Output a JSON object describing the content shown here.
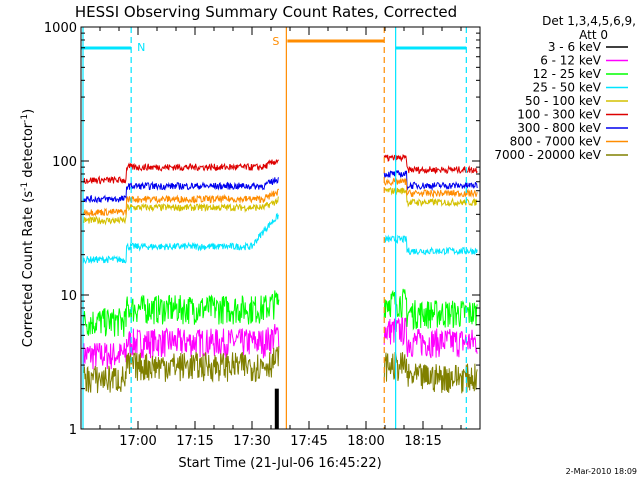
{
  "chart_data": {
    "type": "line",
    "title": "HESSI Observing Summary Count Rates, Corrected",
    "xlabel": "Start Time (21-Jul-06 16:45:22)",
    "ylabel_main": "Corrected Count Rate (s",
    "ylabel_sup1": "-1",
    "ylabel_mid": " detector",
    "ylabel_sup2": "-1",
    "ylabel_end": ")",
    "yscale": "log",
    "ylim": [
      1,
      1000
    ],
    "xlim_minutes": [
      16.75,
      18.5
    ],
    "x_tick_labels": [
      {
        "label": "17:00",
        "min": 17.0
      },
      {
        "label": "17:15",
        "min": 17.25
      },
      {
        "label": "17:30",
        "min": 17.5
      },
      {
        "label": "17:45",
        "min": 17.75
      },
      {
        "label": "18:00",
        "min": 18.0
      },
      {
        "label": "18:15",
        "min": 18.25
      }
    ],
    "y_tick_labels": [
      {
        "label": "1000",
        "v": 1000
      },
      {
        "label": "100",
        "v": 100
      },
      {
        "label": "10",
        "v": 10
      },
      {
        "label": "1",
        "v": 1
      }
    ],
    "detectors_line1": "Det 1,3,4,5,6,9,",
    "detectors_line2": "Att 0",
    "flags": [
      {
        "label": "N",
        "color": "#00e5ff"
      },
      {
        "label": "S",
        "color": "#ff8c00"
      }
    ],
    "gaps": [
      [
        17.62,
        18.08
      ]
    ],
    "series": [
      {
        "name": "3 - 6 keV",
        "color": "#000000",
        "pre": 0,
        "post": 0
      },
      {
        "name": "6 - 12 keV",
        "color": "#ff00ff",
        "pre": 4.5,
        "post": 5.5
      },
      {
        "name": "12 - 25 keV",
        "color": "#00ff00",
        "pre": 8,
        "post": 9
      },
      {
        "name": "25 - 50 keV",
        "color": "#00e5ff",
        "pre": 23,
        "post": 26
      },
      {
        "name": "50 - 100 keV",
        "color": "#d4c000",
        "pre": 45,
        "post": 60
      },
      {
        "name": "100 - 300 keV",
        "color": "#dd0000",
        "pre": 90,
        "post": 105
      },
      {
        "name": "300 - 800 keV",
        "color": "#0000ee",
        "pre": 65,
        "post": 80
      },
      {
        "name": "800 - 7000 keV",
        "color": "#ff8c00",
        "pre": 52,
        "post": 70
      },
      {
        "name": "7000 - 20000 keV",
        "color": "#808000",
        "pre": 3,
        "post": 3
      }
    ]
  },
  "timestamp": "2-Mar-2010 18:09"
}
